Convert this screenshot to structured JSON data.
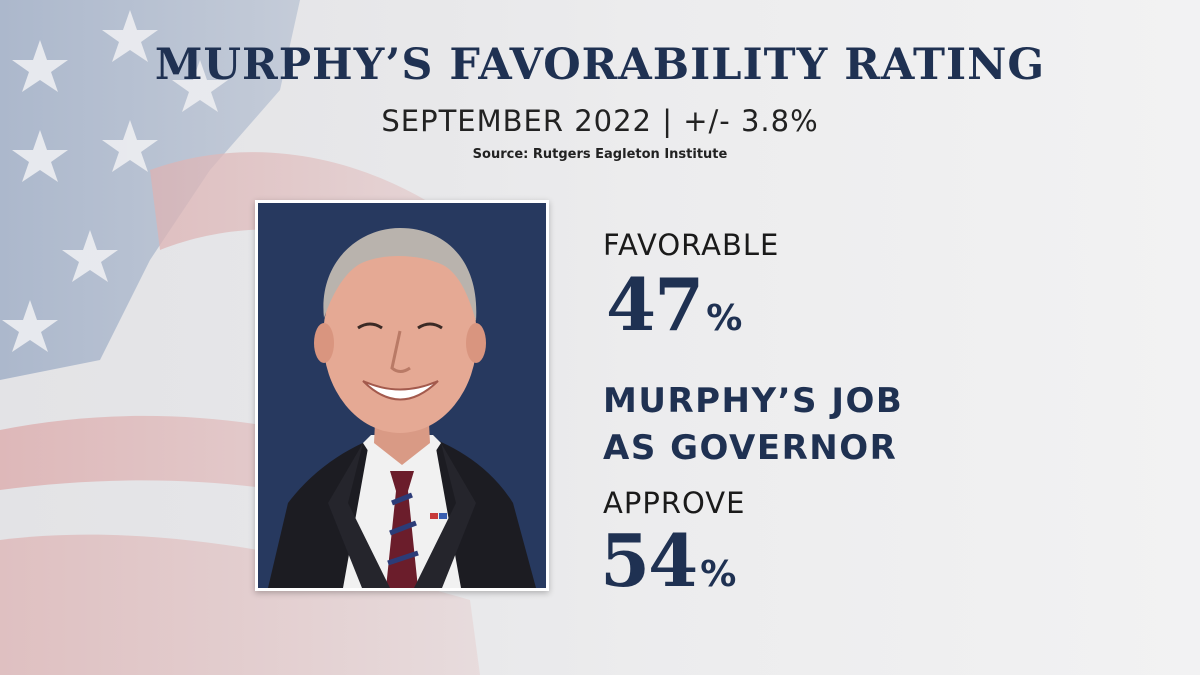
{
  "title": "MURPHY’S FAVORABILITY RATING",
  "subtitle": "SEPTEMBER 2022 | +/- 3.8%",
  "source": "Source: Rutgers Eagleton Institute",
  "favorable": {
    "label": "FAVORABLE",
    "value": "47",
    "unit": "%"
  },
  "job": {
    "heading_line1": "MURPHY’S JOB",
    "heading_line2": "AS GOVERNOR",
    "label": "APPROVE",
    "value": "54",
    "unit": "%"
  },
  "colors": {
    "accent": "#1f3152",
    "photo_background": "#27395f",
    "text": "#1a1a1a"
  }
}
